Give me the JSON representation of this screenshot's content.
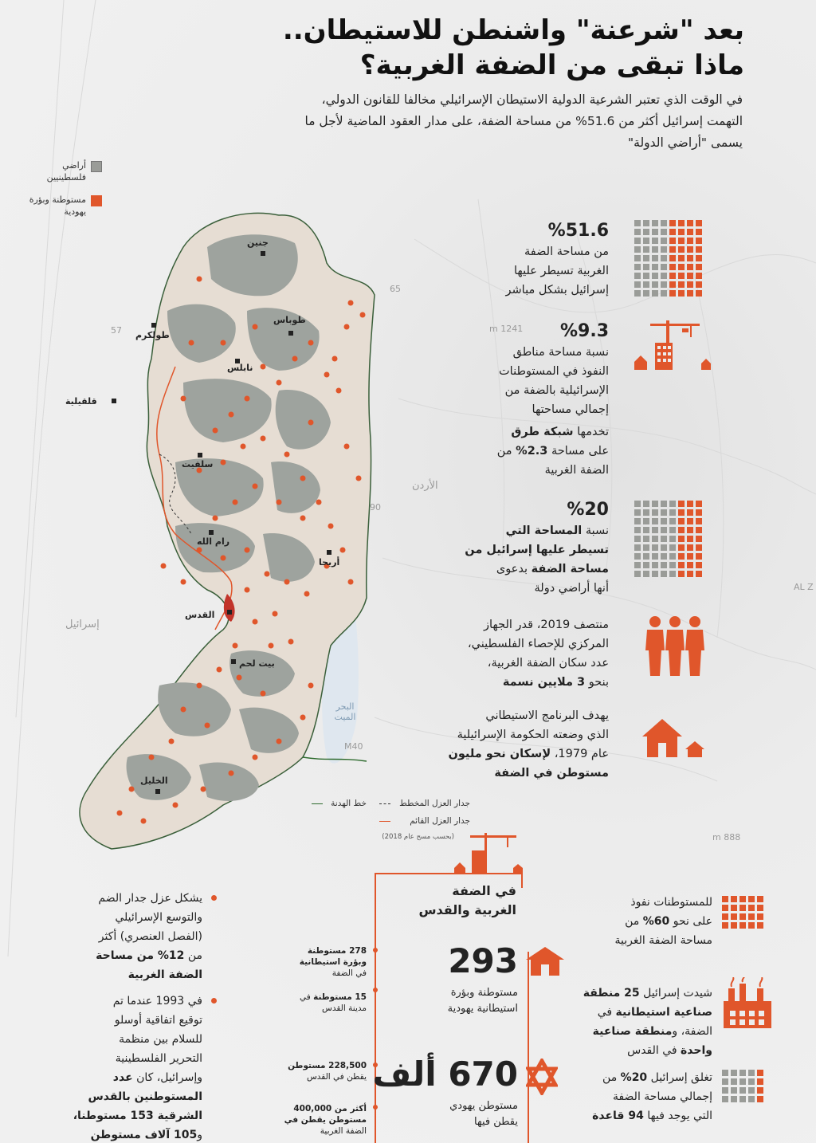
{
  "header": {
    "title_line1": "بعد \"شرعنة\" واشنطن للاستيطان..",
    "title_line2": "ماذا تبقى من الضفة الغربية؟",
    "intro": "في الوقت الذي تعتبر الشرعية الدولية الاستيطان الإسرائيلي مخالفا للقانون الدولي، التهمت إسرائيل أكثر من 51.6% من مساحة الضفة، على مدار العقود الماضية لأجل ما يسمى \"أراضي الدولة\""
  },
  "legend_top": {
    "palestinian_land": "أراضي فلسطينيين",
    "settlements": "مستوطنة وبؤرة يهودية",
    "palestinian_color": "#9ea39e",
    "settlement_color": "#e0562b"
  },
  "map": {
    "cities": {
      "jenin": "جنين",
      "tubas": "طوباس",
      "tulkarm": "طولكرم",
      "nablus": "نابلس",
      "qalqilya": "قلقيلية",
      "salfit": "سلفيت",
      "ramallah": "رام الله",
      "jericho": "أريحا",
      "jerusalem": "القدس",
      "bethlehem": "بيت لحم",
      "hebron": "الخليل"
    },
    "regions": {
      "jordan": "الأردن",
      "israel": "إسرائيل",
      "dead_sea": "البحر الميت"
    },
    "faint_labels": {
      "road_57": "57",
      "road_65": "65",
      "road_90": "90",
      "road_m40": "M40",
      "elev_1241": "1241 m",
      "elev_888": "888 m",
      "edge_alz": "AL Z"
    },
    "legend": {
      "armistice": "خط الهدنة",
      "planned_wall": "جدار العزل المخطط",
      "existing_wall": "جدار العزل القائم",
      "source": "(بحسب مسح عام 2018)"
    },
    "colors": {
      "west_bank_fill": "#e6ddd3",
      "palestinian_fill": "#9ea39e",
      "settlement": "#e0562b",
      "armistice_line": "#2e6b2e",
      "wall": "#e0562b",
      "water": "#dfe7ef"
    }
  },
  "stats": {
    "s1": {
      "big": "%51.6",
      "l1": "من مساحة الضفة",
      "l2": "الغربية تسيطر عليها",
      "l3": "إسرائيل بشكل مباشر"
    },
    "s2": {
      "big": "%9.3",
      "l1": "نسبة مساحة مناطق",
      "l2": "النفوذ في المستوطنات",
      "l3": "الإسرائيلية بالضفة من",
      "l4": "إجمالي مساحتها"
    },
    "s3": {
      "l1a": "تخدمها ",
      "l1b": "شبكة طرق",
      "l2a": "على مساحة ",
      "l2b": "2.3%",
      "l2c": " من",
      "l3": "الضفة الغربية"
    },
    "s4": {
      "big": "%20",
      "l1a": "نسبة ",
      "l1b": "المساحة التي",
      "l2": "تسيطر عليها إسرائيل من",
      "l3a": "مساحة الضفة",
      "l3b": " بدعوى",
      "l4": "أنها أراضي دولة"
    },
    "s5": {
      "l1": "منتصف 2019، قدر الجهاز",
      "l2": "المركزي للإحصاء الفلسطيني،",
      "l3": "عدد سكان الضفة الغربية،",
      "l4a": "بنحو ",
      "l4b": "3 ملايين نسمة"
    },
    "s6": {
      "l1": "يهدف البرنامج الاستيطاني",
      "l2": "الذي وضعته الحكومة الإسرائيلية",
      "l3a": "عام 1979، ",
      "l3b": "لإسكان نحو مليون",
      "l4": "مستوطن في الضفة"
    }
  },
  "bottom": {
    "left": {
      "b1": {
        "l1": "يشكل عزل جدار الضم",
        "l2": "والتوسع الإسرائيلي",
        "l3": "(الفصل العنصري) أكثر",
        "l4a": "من ",
        "l4b": "12% من مساحة",
        "l5": "الضفة الغربية"
      },
      "b2": {
        "l1": "في 1993 عندما تم",
        "l2": "توقيع اتفاقية أوسلو",
        "l3": "للسلام بين منظمة",
        "l4": "التحرير الفلسطينية",
        "l5a": "وإسرائيل، كان ",
        "l5b": "عدد",
        "l6": "المستوطنين بالقدس",
        "l7": "الشرقية 153 مستوطنا،",
        "l8a": "و",
        "l8b": "105 آلاف مستوطن"
      }
    },
    "center": {
      "heading_l1": "في الضفة",
      "heading_l2": "الغربية والقدس",
      "n1": "293",
      "n1_caption_l1": "مستوطنة وبؤرة",
      "n1_caption_l2": "استيطانية يهودية",
      "t1": {
        "l1": "278 مستوطنة",
        "l2": "وبؤرة استيطانية",
        "l3": "في الضفة"
      },
      "t2": {
        "l1a": "15 مستوطنة",
        "l1b": " في",
        "l2": "مدينة القدس"
      },
      "n2": "670 ألف",
      "n2_caption_l1": "مستوطن يهودي",
      "n2_caption_l2": "يقطن فيها",
      "t3": {
        "l1": "228,500 مستوطن",
        "l2": "يقطن في القدس"
      },
      "t4": {
        "l1": "أكثر من 400,000",
        "l2": "مستوطن يقطن في",
        "l3": "الضفة الغربية"
      }
    },
    "right": {
      "r1": {
        "l1": "للمستوطنات نفوذ",
        "l2a": "على نحو ",
        "l2b": "60%",
        "l2c": " من",
        "l3": "مساحة الضفة الغربية"
      },
      "r2": {
        "l1a": "شيدت إسرائيل ",
        "l1b": "25 منطقة",
        "l2a": "صناعية استيطانية",
        "l2b": " في",
        "l3a": "الضفة، و",
        "l3b": "منطقة صناعية",
        "l4a": "واحدة",
        "l4b": " في القدس"
      },
      "r3": {
        "l1a": "تغلق إسرائيل ",
        "l1b": "20%",
        "l1c": " من",
        "l2": "إجمالي مساحة الضفة",
        "l3a": "التي يوجد فيها ",
        "l3b": "94 قاعدة"
      }
    }
  }
}
